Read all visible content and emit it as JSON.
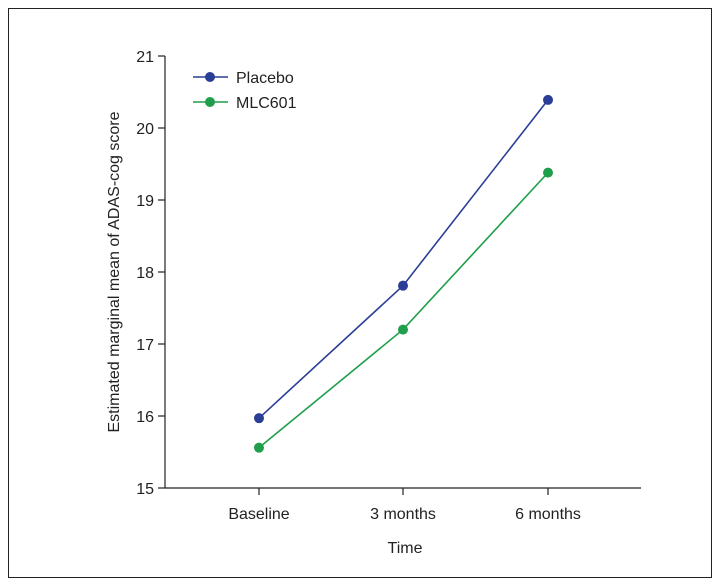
{
  "chart_data": {
    "type": "line",
    "title": "",
    "xlabel": "Time",
    "ylabel": "Estimated marginal mean of ADAS-cog score",
    "categories": [
      "Baseline",
      "3 months",
      "6 months"
    ],
    "ylim": [
      15,
      21
    ],
    "yticks": [
      15,
      16,
      17,
      18,
      19,
      20,
      21
    ],
    "grid": false,
    "legend_position": "top-left",
    "series": [
      {
        "name": "Placebo",
        "values": [
          15.97,
          17.81,
          20.39
        ],
        "color": "#2b3e96"
      },
      {
        "name": "MLC601",
        "values": [
          15.56,
          17.2,
          19.38
        ],
        "color": "#1f9e4b"
      }
    ]
  }
}
